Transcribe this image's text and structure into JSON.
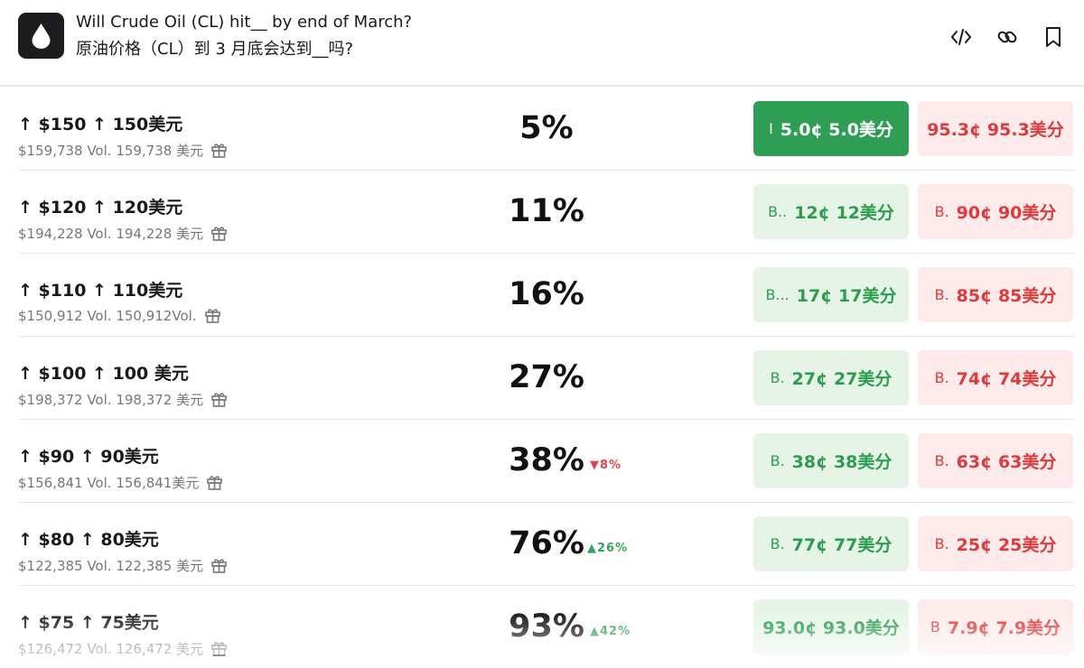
{
  "header": {
    "title_en": "Will Crude Oil (CL) hit__ by end of March?",
    "title_zh": "原油价格（CL）到 3 月底会达到__吗?",
    "icons": [
      "embed-icon",
      "link-icon",
      "bookmark-icon"
    ]
  },
  "rows": [
    {
      "strike": "↑ $150  ↑ 150美元",
      "volume": "$159,738 Vol.  159,738 美元",
      "percent": "5%",
      "change": "",
      "change_dir": "",
      "yes_prefix": "I",
      "yes_label": "5.0¢  5.0美分",
      "no_prefix": "",
      "no_label": "95.3¢  95.3美分"
    },
    {
      "strike": "↑ $120  ↑ 120美元",
      "volume": "$194,228 Vol.  194,228 美元",
      "percent": "11%",
      "change": "",
      "change_dir": "",
      "yes_prefix": "B..",
      "yes_label": "12¢  12美分",
      "no_prefix": "B.",
      "no_label": "90¢  90美分"
    },
    {
      "strike": "↑ $110  ↑ 110美元",
      "volume": "$150,912 Vol.  150,912Vol.",
      "percent": "16%",
      "change": "",
      "change_dir": "",
      "yes_prefix": "B...",
      "yes_label": "17¢  17美分",
      "no_prefix": "B.",
      "no_label": "85¢  85美分"
    },
    {
      "strike": "↑ $100  ↑ 100 美元",
      "volume": "$198,372 Vol.  198,372 美元",
      "percent": "27%",
      "change": "",
      "change_dir": "",
      "yes_prefix": "B.",
      "yes_label": "27¢  27美分",
      "no_prefix": "B.",
      "no_label": "74¢  74美分"
    },
    {
      "strike": "↑ $90  ↑ 90美元",
      "volume": "$156,841 Vol.  156,841美元",
      "percent": "38%",
      "change": "▼8%",
      "change_dir": "down",
      "yes_prefix": "B.",
      "yes_label": "38¢  38美分",
      "no_prefix": "B.",
      "no_label": "63¢  63美分"
    },
    {
      "strike": "↑ $80  ↑ 80美元",
      "volume": "$122,385 Vol.  122,385 美元",
      "percent": "76%",
      "change": "▲26%",
      "change_dir": "up",
      "yes_prefix": "B.",
      "yes_label": "77¢  77美分",
      "no_prefix": "B.",
      "no_label": "25¢  25美分"
    },
    {
      "strike": "↑ $75  ↑ 75美元",
      "volume": "$126,472 Vol.  126,472 美元",
      "percent": "93%",
      "change": "▲42%",
      "change_dir": "up",
      "yes_prefix": "",
      "yes_label": "93.0¢  93.0美分",
      "no_prefix": "B",
      "no_label": "7.9¢  7.9美分"
    }
  ],
  "colors": {
    "yes_solid": "#2f9e55",
    "yes_light": "#e6f4e8",
    "yes_text": "#2e9c4f",
    "no_light": "#fcebea",
    "no_text": "#dc3b3e"
  }
}
